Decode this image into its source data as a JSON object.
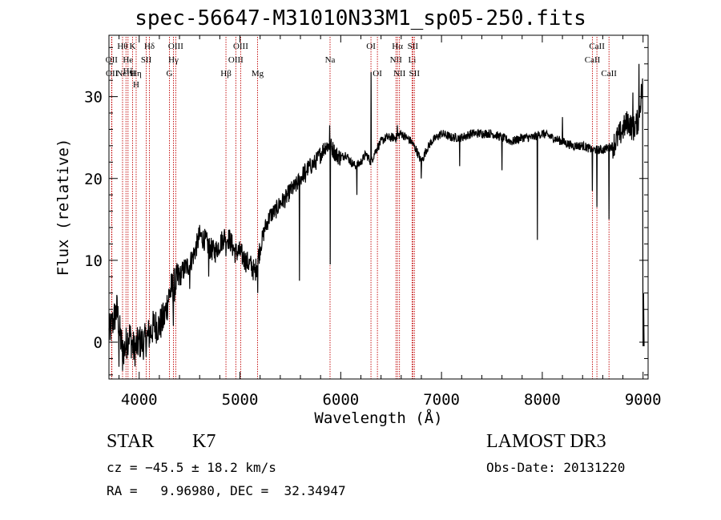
{
  "chart_data": {
    "type": "line",
    "title": "spec-56647-M31010N33M1_sp05-250.fits",
    "xlabel": "Wavelength (Å)",
    "ylabel": "Flux (relative)",
    "xlim": [
      3700,
      9050
    ],
    "ylim": [
      -4.5,
      37.5
    ],
    "xticks": [
      4000,
      5000,
      6000,
      7000,
      8000,
      9000
    ],
    "xtick_labels": [
      "4000",
      "5000",
      "6000",
      "7000",
      "8000",
      "9000"
    ],
    "yticks": [
      0,
      10,
      20,
      30
    ],
    "ytick_labels": [
      "0",
      "10",
      "20",
      "30"
    ],
    "grid": false,
    "series": [
      {
        "name": "flux",
        "anchors": [
          [
            3700,
            1
          ],
          [
            3780,
            4
          ],
          [
            3820,
            0
          ],
          [
            3850,
            -1
          ],
          [
            3900,
            1
          ],
          [
            3950,
            -1
          ],
          [
            4000,
            0
          ],
          [
            4050,
            0
          ],
          [
            4100,
            1
          ],
          [
            4150,
            2
          ],
          [
            4200,
            2
          ],
          [
            4250,
            3
          ],
          [
            4300,
            6
          ],
          [
            4350,
            7
          ],
          [
            4400,
            8
          ],
          [
            4450,
            9
          ],
          [
            4500,
            9.5
          ],
          [
            4550,
            11
          ],
          [
            4600,
            13
          ],
          [
            4650,
            12.5
          ],
          [
            4700,
            11.5
          ],
          [
            4750,
            11
          ],
          [
            4800,
            12
          ],
          [
            4850,
            13
          ],
          [
            4900,
            12.5
          ],
          [
            4950,
            11
          ],
          [
            5000,
            11
          ],
          [
            5050,
            10
          ],
          [
            5100,
            9.5
          ],
          [
            5150,
            8.5
          ],
          [
            5200,
            11.5
          ],
          [
            5250,
            14
          ],
          [
            5300,
            15.5
          ],
          [
            5350,
            16
          ],
          [
            5400,
            17
          ],
          [
            5450,
            17.5
          ],
          [
            5500,
            18.5
          ],
          [
            5550,
            19
          ],
          [
            5600,
            20
          ],
          [
            5650,
            21
          ],
          [
            5700,
            21.5
          ],
          [
            5750,
            22
          ],
          [
            5800,
            23
          ],
          [
            5850,
            24
          ],
          [
            5900,
            24
          ],
          [
            5950,
            23
          ],
          [
            6000,
            22.5
          ],
          [
            6050,
            23
          ],
          [
            6100,
            22
          ],
          [
            6150,
            21.5
          ],
          [
            6200,
            22
          ],
          [
            6250,
            23
          ],
          [
            6300,
            22
          ],
          [
            6350,
            23.5
          ],
          [
            6400,
            24.5
          ],
          [
            6450,
            25
          ],
          [
            6500,
            25
          ],
          [
            6550,
            25
          ],
          [
            6600,
            25.5
          ],
          [
            6650,
            25
          ],
          [
            6700,
            24.5
          ],
          [
            6750,
            23.5
          ],
          [
            6800,
            22
          ],
          [
            6850,
            23.5
          ],
          [
            6900,
            24.5
          ],
          [
            6950,
            25
          ],
          [
            7000,
            25.5
          ],
          [
            7100,
            25
          ],
          [
            7200,
            25
          ],
          [
            7300,
            25.5
          ],
          [
            7400,
            25.5
          ],
          [
            7500,
            25.5
          ],
          [
            7600,
            25
          ],
          [
            7700,
            24.5
          ],
          [
            7800,
            25
          ],
          [
            7900,
            25
          ],
          [
            8000,
            25.5
          ],
          [
            8100,
            25
          ],
          [
            8200,
            24.5
          ],
          [
            8300,
            24
          ],
          [
            8400,
            24
          ],
          [
            8500,
            23.5
          ],
          [
            8600,
            23.5
          ],
          [
            8700,
            24
          ],
          [
            8750,
            25
          ],
          [
            8800,
            26
          ],
          [
            8850,
            27
          ],
          [
            8900,
            26
          ],
          [
            8950,
            27
          ],
          [
            9000,
            32
          ]
        ],
        "features": [
          [
            3800,
            -3
          ],
          [
            3835,
            -3.5
          ],
          [
            4102,
            1.5
          ],
          [
            4340,
            2
          ],
          [
            4500,
            6.5
          ],
          [
            4590,
            14
          ],
          [
            4690,
            8
          ],
          [
            4860,
            10.5
          ],
          [
            5175,
            6
          ],
          [
            5590,
            7.5
          ],
          [
            5650,
            19.5
          ],
          [
            5895,
            9.5
          ],
          [
            5890,
            26.5
          ],
          [
            6160,
            18
          ],
          [
            6300,
            33
          ],
          [
            6563,
            26.5
          ],
          [
            6800,
            20
          ],
          [
            7180,
            21.5
          ],
          [
            7600,
            21
          ],
          [
            7950,
            12.5
          ],
          [
            8200,
            27.5
          ],
          [
            8498,
            18.5
          ],
          [
            8542,
            16.5
          ],
          [
            8662,
            15
          ],
          [
            8900,
            30.5
          ],
          [
            8960,
            34
          ],
          [
            9000,
            -0.5
          ],
          [
            9010,
            6
          ]
        ]
      }
    ],
    "line_markers": [
      {
        "wl": 3835,
        "labels": [
          "Hθ"
        ],
        "row": 0
      },
      {
        "wl": 3726,
        "labels": [
          "OII"
        ],
        "row": 1
      },
      {
        "wl": 3729,
        "labels": [
          "OII"
        ],
        "row": 2
      },
      {
        "wl": 3869,
        "labels": [
          "NeIII"
        ],
        "row": 2
      },
      {
        "wl": 3889,
        "labels": [
          "He",
          "Hζ"
        ],
        "row": 1
      },
      {
        "wl": 3934,
        "labels": [
          "K"
        ],
        "row": 0
      },
      {
        "wl": 3970,
        "labels": [
          "Hη",
          "H"
        ],
        "row": 2
      },
      {
        "wl": 4070,
        "labels": [
          "SII"
        ],
        "row": 1
      },
      {
        "wl": 4102,
        "labels": [
          "Hδ"
        ],
        "row": 0
      },
      {
        "wl": 4300,
        "labels": [
          "G"
        ],
        "row": 2
      },
      {
        "wl": 4340,
        "labels": [
          "Hγ"
        ],
        "row": 1
      },
      {
        "wl": 4363,
        "labels": [
          "OIII"
        ],
        "row": 0
      },
      {
        "wl": 4861,
        "labels": [
          "Hβ"
        ],
        "row": 2
      },
      {
        "wl": 4959,
        "labels": [
          "OIII"
        ],
        "row": 1
      },
      {
        "wl": 5007,
        "labels": [
          "OIII"
        ],
        "row": 0
      },
      {
        "wl": 5175,
        "labels": [
          "Mg"
        ],
        "row": 2
      },
      {
        "wl": 5894,
        "labels": [
          "Na"
        ],
        "row": 1
      },
      {
        "wl": 6300,
        "labels": [
          "OI"
        ],
        "row": 0
      },
      {
        "wl": 6364,
        "labels": [
          "OI"
        ],
        "row": 2
      },
      {
        "wl": 6548,
        "labels": [
          "NII"
        ],
        "row": 1
      },
      {
        "wl": 6563,
        "labels": [
          "Hα"
        ],
        "row": 0
      },
      {
        "wl": 6583,
        "labels": [
          "NII"
        ],
        "row": 2
      },
      {
        "wl": 6708,
        "labels": [
          "Li"
        ],
        "row": 1
      },
      {
        "wl": 6716,
        "labels": [
          "SII"
        ],
        "row": 0
      },
      {
        "wl": 6731,
        "labels": [
          "SII"
        ],
        "row": 2
      },
      {
        "wl": 8498,
        "labels": [
          "CaII"
        ],
        "row": 1
      },
      {
        "wl": 8542,
        "labels": [
          "CaII"
        ],
        "row": 0
      },
      {
        "wl": 8662,
        "labels": [
          "CaII"
        ],
        "row": 2
      }
    ]
  },
  "info": {
    "class": "STAR",
    "subclass": "K7",
    "cz": "cz = −45.5 ± 18.2 km/s",
    "coords": "RA =   9.96980, DEC =  32.34947",
    "survey": "LAMOST DR3",
    "obs_date": "Obs-Date: 20131220"
  },
  "colors": {
    "marker": "#c00000",
    "spectrum": "#000000",
    "axes": "#000000"
  }
}
